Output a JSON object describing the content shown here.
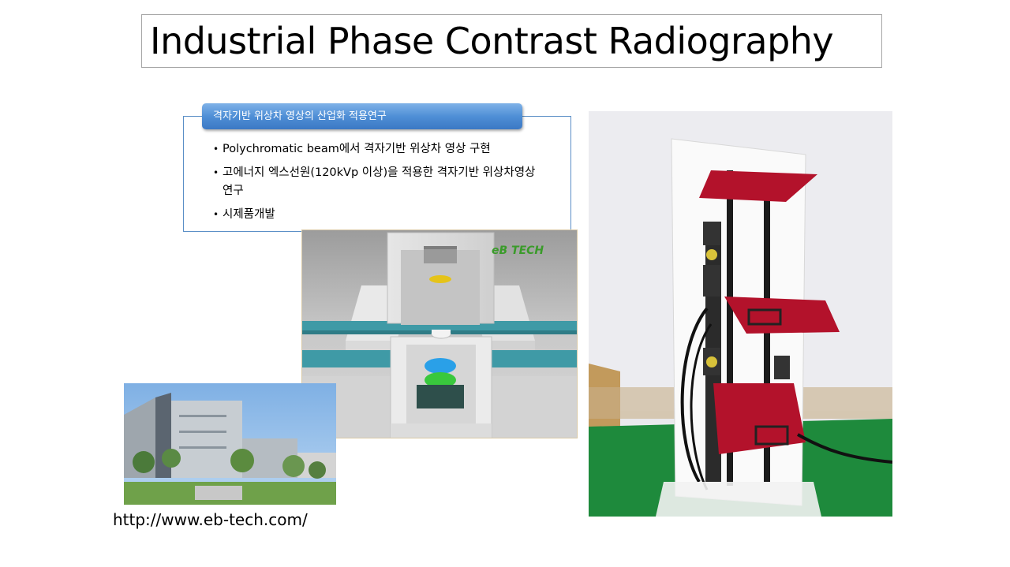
{
  "slide": {
    "title": "Industrial Phase Contrast Radiography",
    "info": {
      "header": "격자기반 위상차 영상의 산업화 적용연구",
      "bullets": [
        "Polychromatic beam에서 격자기반 위상차 영상 구현",
        "고에너지 엑스선원(120kVp 이상)을 적용한 격자기반 위상차영상 연구",
        "시제품개발"
      ]
    },
    "render_logo": "eB TECH",
    "url": "http://www.eb-tech.com/"
  },
  "colors": {
    "header_blue": "#4f8fd6",
    "box_border": "#5b8fc7",
    "title_border": "#a6a6a6",
    "render_teal": "#3f9aa6",
    "logo_green": "#3a9b2a",
    "panel_red": "#b3122b",
    "floor_green": "#1e8a3c"
  },
  "icons": {
    "bullet": "bullet-dot"
  }
}
